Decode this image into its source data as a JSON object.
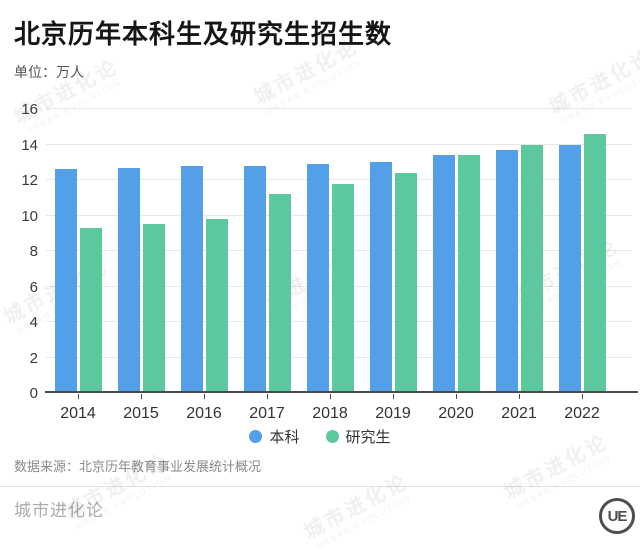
{
  "header": {
    "title": "北京历年本科生及研究生招生数",
    "subtitle": "单位：万人"
  },
  "chart_data": {
    "type": "bar",
    "categories": [
      "2014",
      "2015",
      "2016",
      "2017",
      "2018",
      "2019",
      "2020",
      "2021",
      "2022"
    ],
    "series": [
      {
        "name": "本科",
        "color": "#54a0e8",
        "values": [
          12.6,
          12.7,
          12.8,
          12.8,
          12.9,
          13.0,
          13.4,
          13.7,
          14.0
        ]
      },
      {
        "name": "研究生",
        "color": "#5bc89d",
        "values": [
          9.3,
          9.5,
          9.8,
          11.2,
          11.8,
          12.4,
          13.4,
          14.0,
          14.6
        ]
      }
    ],
    "title": "北京历年本科生及研究生招生数",
    "xlabel": "",
    "ylabel": "万人",
    "ylim": [
      0,
      16
    ],
    "yticks": [
      0,
      2,
      4,
      6,
      8,
      10,
      12,
      14,
      16
    ],
    "grid": true,
    "legend_position": "bottom"
  },
  "footer": {
    "source": "数据来源：北京历年教育事业发展统计概况",
    "brand": "城市进化论",
    "logo": "UE"
  },
  "watermark": {
    "line1": "城市进化论",
    "line2": "URBAN EVOLUTION"
  }
}
